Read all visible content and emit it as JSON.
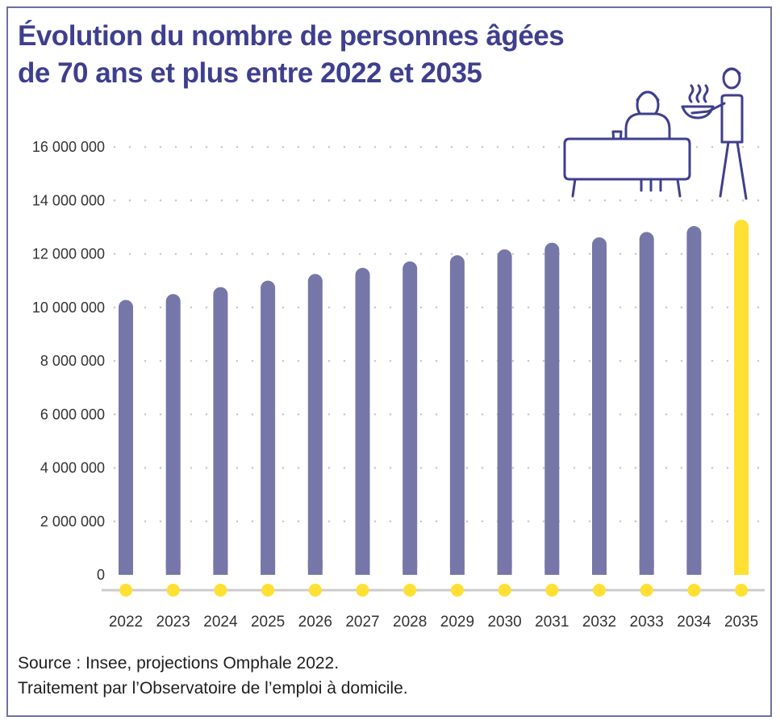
{
  "chart_data": {
    "type": "bar",
    "title": "Évolution du nombre de personnes âgées de 70 ans et plus entre 2022 et 2035",
    "title_lines": [
      "Évolution du nombre de personnes âgées",
      "de 70 ans et plus entre 2022 et 2035"
    ],
    "categories": [
      "2022",
      "2023",
      "2024",
      "2025",
      "2026",
      "2027",
      "2028",
      "2029",
      "2030",
      "2031",
      "2032",
      "2033",
      "2034",
      "2035"
    ],
    "values": [
      10280000,
      10500000,
      10760000,
      11000000,
      11250000,
      11480000,
      11720000,
      11950000,
      12170000,
      12420000,
      12620000,
      12820000,
      13040000,
      13280000
    ],
    "highlight_index": 13,
    "ylim": [
      0,
      16000000
    ],
    "yticks": [
      0,
      2000000,
      4000000,
      6000000,
      8000000,
      10000000,
      12000000,
      14000000,
      16000000
    ],
    "ytick_labels": [
      "0",
      "2 000 000",
      "4 000 000",
      "6 000 000",
      "8 000 000",
      "10 000 000",
      "12 000 000",
      "14 000 000",
      "16 000 000"
    ],
    "xlabel": "",
    "ylabel": "",
    "grid": "dotted horizontal"
  },
  "colors": {
    "bar": "#7676a8",
    "highlight": "#ffe033",
    "title": "#3f3f8f",
    "axis": "#cccccc",
    "grid": "#c8c8c8",
    "frame": "#6e6fa3"
  },
  "source": {
    "line1": "Source : Insee, projections Omphale 2022.",
    "line2": "Traitement par l’Observatoire de l’emploi à domicile."
  },
  "illustration": "elderly-person-at-table-with-server-icon"
}
